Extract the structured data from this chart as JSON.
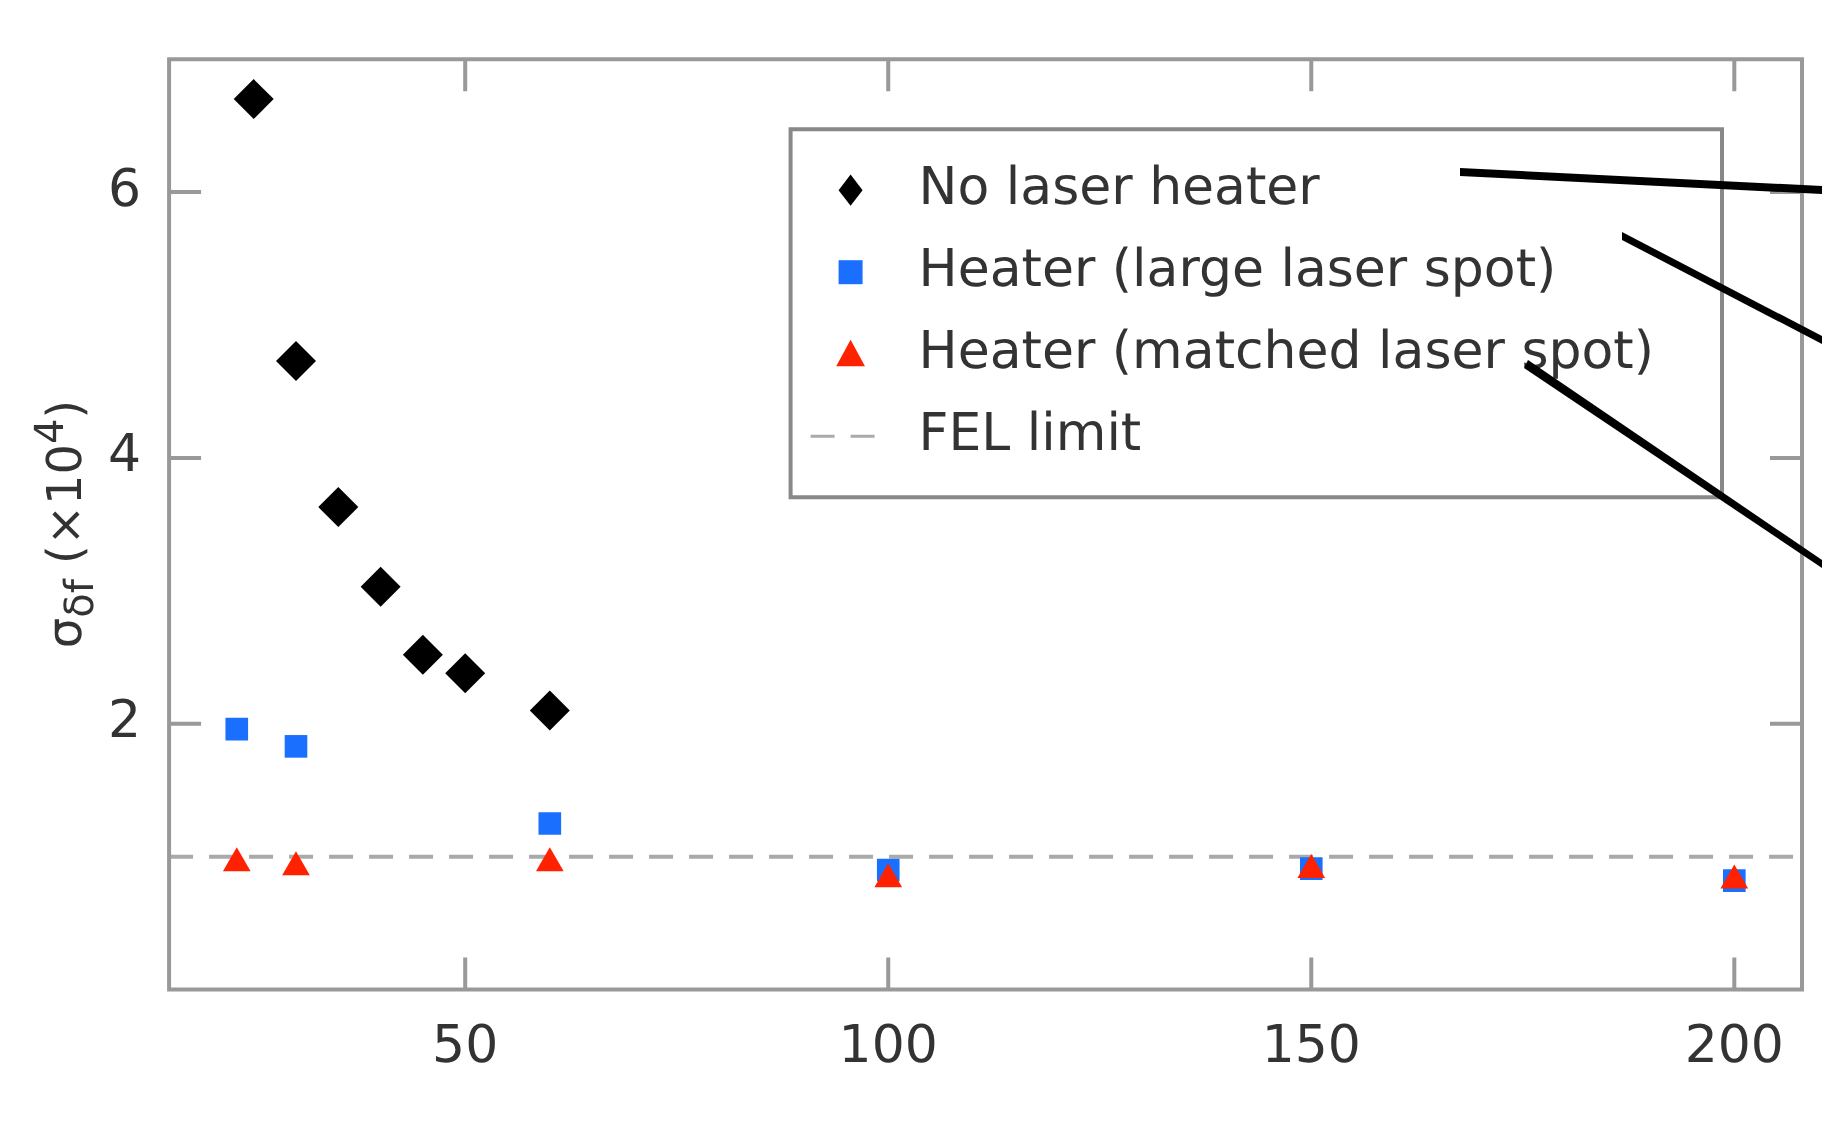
{
  "chart_data": {
    "type": "scatter",
    "ylabel": "σ$_{δf}$ (×10$^{4}$)",
    "xlim": [
      15,
      208
    ],
    "ylim": [
      0,
      7
    ],
    "xticks": [
      50,
      100,
      150,
      200
    ],
    "yticks": [
      2,
      4,
      6
    ],
    "grid": false,
    "legend": "top right",
    "series": [
      {
        "name": "No laser heater",
        "color": "#000000",
        "marker": "diamond",
        "x": [
          25,
          30,
          35,
          40,
          45,
          50,
          60
        ],
        "values": [
          6.7,
          4.73,
          3.63,
          3.03,
          2.52,
          2.38,
          2.1
        ]
      },
      {
        "name": "Heater (large laser spot)",
        "color": "#1a6fff",
        "marker": "square",
        "x": [
          23,
          30,
          60,
          100,
          150,
          200
        ],
        "values": [
          1.96,
          1.83,
          1.25,
          0.9,
          0.91,
          0.82
        ]
      },
      {
        "name": "Heater (matched laser spot)",
        "color": "#ff2200",
        "marker": "triangle",
        "x": [
          23,
          30,
          60,
          100,
          150,
          200
        ],
        "values": [
          0.95,
          0.92,
          0.95,
          0.83,
          0.9,
          0.82
        ]
      }
    ],
    "ref_lines": [
      {
        "axis": "y",
        "value": 1.0,
        "label": "FEL limit",
        "color": "#aaaaaa",
        "line_style": "dashed"
      }
    ]
  }
}
